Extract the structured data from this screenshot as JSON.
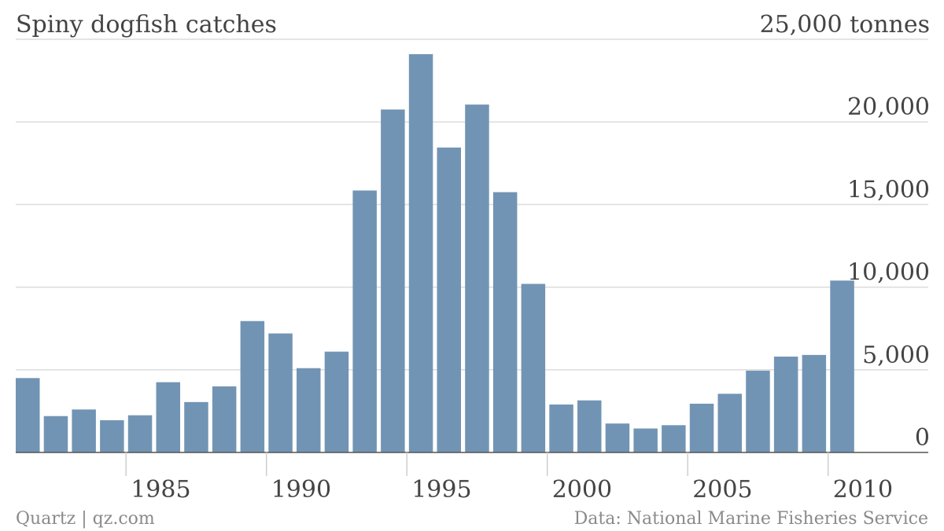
{
  "chart_data": {
    "type": "bar",
    "title": "Spiny dogfish catches",
    "y_unit_label": "25,000 tonnes",
    "ylim": [
      0,
      25000
    ],
    "y_ticks": [
      0,
      5000,
      10000,
      15000,
      20000
    ],
    "y_tick_labels": [
      "0",
      "5,000",
      "10,000",
      "15,000",
      "20,000"
    ],
    "x": [
      1981,
      1982,
      1983,
      1984,
      1985,
      1986,
      1987,
      1988,
      1989,
      1990,
      1991,
      1992,
      1993,
      1994,
      1995,
      1996,
      1997,
      1998,
      1999,
      2000,
      2001,
      2002,
      2003,
      2004,
      2005,
      2006,
      2007,
      2008,
      2009,
      2010
    ],
    "values": [
      4500,
      2200,
      2600,
      1950,
      2250,
      4250,
      3050,
      4000,
      7950,
      7200,
      5100,
      6100,
      15850,
      20750,
      24100,
      18450,
      21050,
      15750,
      10200,
      2900,
      3150,
      1750,
      1450,
      1650,
      2950,
      3550,
      4950,
      5800,
      5900,
      10400
    ],
    "x_ticks": [
      1985,
      1990,
      1995,
      2000,
      2005,
      2010
    ],
    "x_tick_labels": [
      "1985",
      "1990",
      "1995",
      "2000",
      "2005",
      "2010"
    ],
    "grid": true,
    "color": "#7294b4",
    "source": "Data: National Marine Fisheries Service",
    "credit": "Quartz | qz.com"
  }
}
